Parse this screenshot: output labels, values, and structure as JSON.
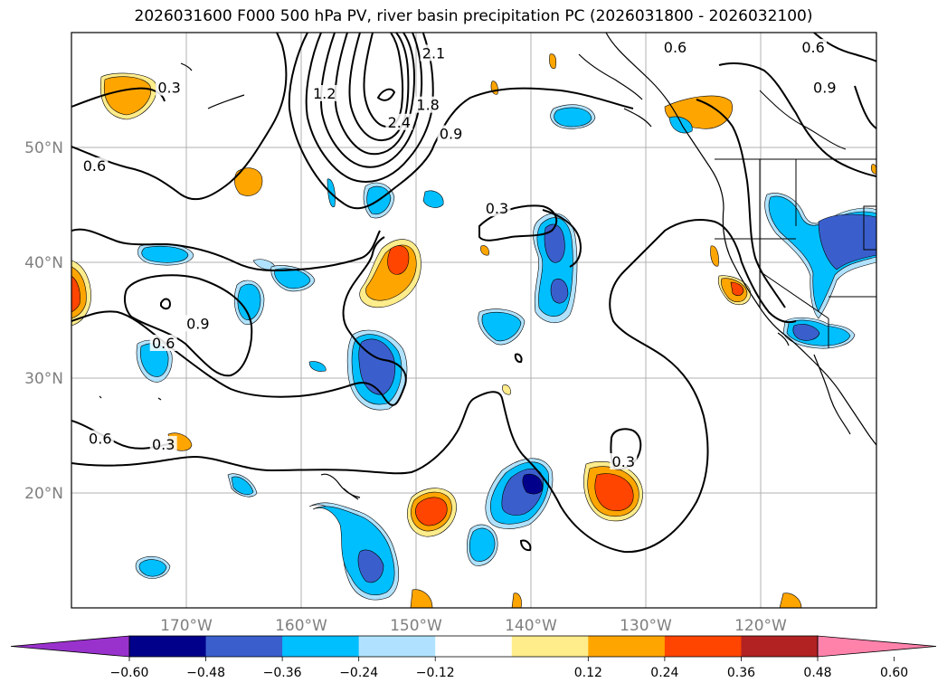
{
  "title": "2026031600 F000 500 hPa PV, river basin precipitation PC (2026031800 - 2026032100)",
  "map": {
    "lat_labels": [
      "50°N",
      "40°N",
      "30°N",
      "20°N"
    ],
    "lon_labels": [
      "170°W",
      "160°W",
      "150°W",
      "140°W",
      "130°W",
      "120°W"
    ],
    "pv_contour_labels": [
      {
        "text": "0.3",
        "lon": -171.5,
        "lat": 55.0
      },
      {
        "text": "0.6",
        "lon": -178.0,
        "lat": 48.2
      },
      {
        "text": "1.2",
        "lon": -158.0,
        "lat": 54.5
      },
      {
        "text": "2.4",
        "lon": -151.5,
        "lat": 52.0
      },
      {
        "text": "1.8",
        "lon": -149.0,
        "lat": 53.5
      },
      {
        "text": "2.1",
        "lon": -148.5,
        "lat": 58.0
      },
      {
        "text": "0.9",
        "lon": -147.0,
        "lat": 51.0
      },
      {
        "text": "0.6",
        "lon": -127.5,
        "lat": 58.5
      },
      {
        "text": "0.6",
        "lon": -115.5,
        "lat": 58.5
      },
      {
        "text": "0.9",
        "lon": -114.5,
        "lat": 55.0
      },
      {
        "text": "0.3",
        "lon": -143.0,
        "lat": 44.5
      },
      {
        "text": "0.9",
        "lon": -169.0,
        "lat": 34.5
      },
      {
        "text": "0.6",
        "lon": -172.0,
        "lat": 32.8
      },
      {
        "text": "0.6",
        "lon": -177.5,
        "lat": 24.5
      },
      {
        "text": "0.3",
        "lon": -172.0,
        "lat": 24.0
      },
      {
        "text": "0.3",
        "lon": -132.0,
        "lat": 22.5
      }
    ]
  },
  "colorbar": {
    "ticks": [
      "−0.60",
      "−0.48",
      "−0.36",
      "−0.24",
      "−0.12",
      "0.12",
      "0.24",
      "0.36",
      "0.48",
      "0.60"
    ],
    "colors": [
      "#9932cc",
      "#00008b",
      "#3a5fcd",
      "#00bfff",
      "#b0e2ff",
      "#ffffff",
      "#ffec8b",
      "#ffa500",
      "#ff4500",
      "#b22222",
      "#ff82ab"
    ]
  }
}
